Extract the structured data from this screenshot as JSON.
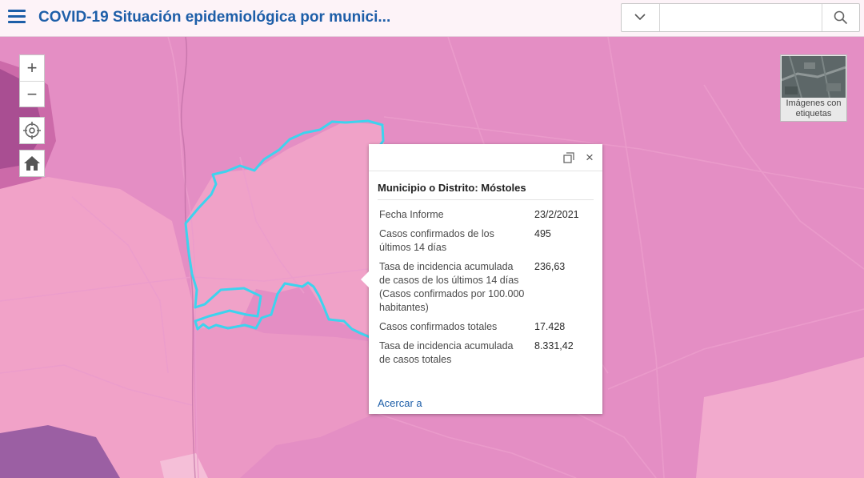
{
  "header": {
    "title": "COVID-19 Situación epidemiológica por munici...",
    "search_value": ""
  },
  "controls": {
    "zoom_in": "+",
    "zoom_out": "−"
  },
  "basemap": {
    "label_line1": "Imágenes con",
    "label_line2": "etiquetas",
    "icon": "satellite-thumbnail"
  },
  "popup": {
    "title": "Municipio o Distrito: Móstoles",
    "rows": [
      {
        "key": "Fecha Informe",
        "value": "23/2/2021"
      },
      {
        "key": "Casos confirmados de los últimos 14 días",
        "value": "495"
      },
      {
        "key": "Tasa de incidencia acumulada de casos de los últimos 14 días (Casos confirmados por 100.000 habitantes)",
        "value": "236,63"
      },
      {
        "key": "Casos confirmados totales",
        "value": "17.428"
      },
      {
        "key": "Tasa de incidencia acumulada de casos totales",
        "value": "8.331,42"
      }
    ],
    "link": "Acercar a"
  },
  "colors": {
    "accent": "#1d5ea8",
    "map_dark": "#d979b8",
    "map_mid": "#e48ec4",
    "map_light": "#f0a7cc",
    "highlight": "#3dd3ee"
  }
}
